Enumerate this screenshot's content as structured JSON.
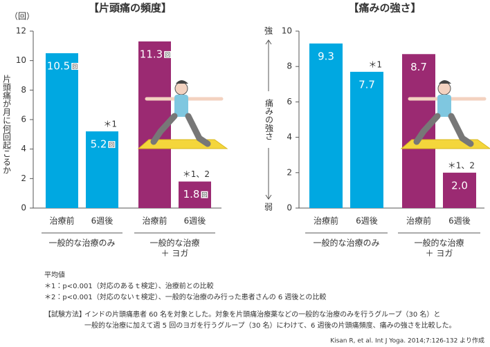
{
  "chart_data": [
    {
      "type": "bar",
      "title": "【片頭痛の頻度】",
      "y_label": "片頭痛が月に何回起こるか",
      "y_unit": "（回）",
      "categories": [
        "治療前",
        "6週後",
        "治療前",
        "6週後"
      ],
      "groups": [
        [
          "一般的な治療のみ"
        ],
        [
          "一般的な治療",
          "＋ ヨガ"
        ]
      ],
      "values": [
        10.5,
        5.2,
        11.3,
        1.8
      ],
      "value_unit": "回",
      "colors": [
        "#00a8e1",
        "#00a8e1",
        "#9b2a72",
        "#9b2a72"
      ],
      "annotations": [
        null,
        "＊1",
        null,
        "＊1、2"
      ],
      "ylim": [
        0,
        12
      ],
      "yticks": [
        0,
        2,
        4,
        6,
        8,
        10,
        12
      ]
    },
    {
      "type": "bar",
      "title": "【痛みの強さ】",
      "y_label": "痛みの強さ",
      "y_top": "強",
      "y_bottom": "弱",
      "categories": [
        "治療前",
        "6週後",
        "治療前",
        "6週後"
      ],
      "groups": [
        [
          "一般的な治療のみ"
        ],
        [
          "一般的な治療",
          "＋ ヨガ"
        ]
      ],
      "values": [
        9.3,
        7.7,
        8.7,
        2.0
      ],
      "value_labels": [
        "9.3",
        "7.7",
        "8.7",
        "2.0"
      ],
      "colors": [
        "#00a8e1",
        "#00a8e1",
        "#9b2a72",
        "#9b2a72"
      ],
      "annotations": [
        null,
        "＊1",
        null,
        "＊1、2"
      ],
      "ylim": [
        0,
        10
      ],
      "yticks": [
        0,
        2,
        4,
        6,
        8,
        10
      ]
    }
  ],
  "footnotes": [
    "平均値",
    "＊1：p<0.001（対応のあるｔ検定）、治療前との比較",
    "＊2：p<0.001（対応のないｔ検定）、一般的な治療のみ行った患者さんの 6 週後との比較"
  ],
  "method": {
    "label": "【試験方法】",
    "lines": [
      "インドの片頭痛患者 60 名を対象とした。対象を片頭痛治療薬などの一般的な治療のみを行うグループ（30 名）と",
      "一般的な治療に加えて週 5 回のヨガを行うグループ（30 名）にわけて、6 週後の片頭痛頻度、痛みの強さを比較した。"
    ]
  },
  "source": "Kisan R, et al. Int J Yoga. 2014;7:126-132 より作成"
}
